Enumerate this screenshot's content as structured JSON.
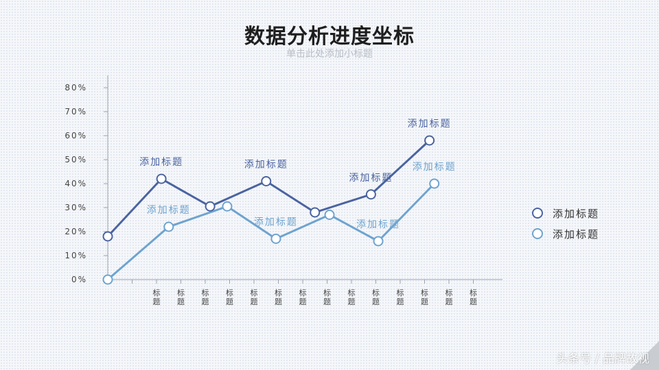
{
  "page": {
    "title": "数据分析进度坐标",
    "subtitle": "单击此处添加小标题",
    "watermark": "头条号 / 品牌故视"
  },
  "colors": {
    "series1": "#4a63a0",
    "series2": "#6ea3cf",
    "axis": "#9aa3ad",
    "tick_text": "#444444"
  },
  "chart_data": {
    "type": "line",
    "x": [
      0,
      1,
      2,
      3,
      4,
      5,
      6,
      7,
      8,
      9,
      10,
      11,
      12,
      13,
      14,
      15
    ],
    "categories": [
      "",
      "",
      "标题",
      "标题",
      "标题",
      "标题",
      "标题",
      "标题",
      "标题",
      "标题",
      "标题",
      "标题",
      "标题",
      "标题",
      "标题",
      "标题"
    ],
    "ylim": [
      0,
      80
    ],
    "y_ticks": [
      "0%",
      "10%",
      "20%",
      "30%",
      "40%",
      "50%",
      "60%",
      "70%",
      "80%"
    ],
    "series": [
      {
        "name": "添加标题",
        "points": [
          [
            0,
            18
          ],
          [
            2.2,
            42
          ],
          [
            4.2,
            30.5
          ],
          [
            6.5,
            41
          ],
          [
            8.5,
            28
          ],
          [
            10.8,
            35.5
          ],
          [
            13.2,
            58
          ]
        ],
        "labels": [
          {
            "index": 1,
            "text": "添加标题"
          },
          {
            "index": 3,
            "text": "添加标题"
          },
          {
            "index": 5,
            "text": "添加标题"
          },
          {
            "index": 6,
            "text": "添加标题"
          }
        ]
      },
      {
        "name": "添加标题",
        "points": [
          [
            0,
            0
          ],
          [
            2.5,
            22
          ],
          [
            4.9,
            30.5
          ],
          [
            6.9,
            17
          ],
          [
            9.1,
            27
          ],
          [
            11.1,
            16
          ],
          [
            13.4,
            40
          ]
        ],
        "labels": [
          {
            "index": 1,
            "text": "添加标题"
          },
          {
            "index": 3,
            "text": "添加标题"
          },
          {
            "index": 5,
            "text": "添加标题"
          },
          {
            "index": 6,
            "text": "添加标题"
          }
        ]
      }
    ],
    "legend": "right"
  }
}
